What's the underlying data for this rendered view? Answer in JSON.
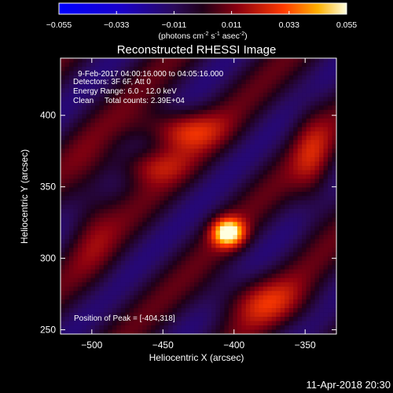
{
  "chart_data": {
    "type": "heatmap",
    "title": "Reconstructed RHESSI Image",
    "colorbar": {
      "ticks": [
        "-0.055",
        "-0.033",
        "-0.011",
        "0.011",
        "0.033",
        "0.055"
      ],
      "range": [
        -0.055,
        0.055
      ],
      "units_main": "(photons cm",
      "units_exp1": "-2",
      "units_mid": " s",
      "units_exp2": "-1",
      "units_mid2": " asec",
      "units_exp3": "-2",
      "units_close": ")"
    },
    "info": {
      "time": "9-Feb-2017 04:00:16.000 to 04:05:16.000",
      "detectors": "Detectors: 3F 6F, Att 0",
      "energy": "Energy Range: 6.0 - 12.0 keV",
      "clean": "Clean     Total counts: 2.39E+04"
    },
    "peak_label": "Position of Peak = [-404,318]",
    "peak": [
      -404,
      318
    ],
    "xlabel": "Heliocentric X (arcsec)",
    "ylabel": "Heliocentric Y (arcsec)",
    "xlim": [
      -522,
      -328
    ],
    "ylim": [
      247,
      440
    ],
    "xticks": [
      {
        "value": -500,
        "label": "−500"
      },
      {
        "value": -450,
        "label": "−450"
      },
      {
        "value": -400,
        "label": "−400"
      },
      {
        "value": -350,
        "label": "−350"
      }
    ],
    "yticks": [
      {
        "value": 250,
        "label": "250"
      },
      {
        "value": 300,
        "label": "300"
      },
      {
        "value": 350,
        "label": "350"
      },
      {
        "value": 400,
        "label": "400"
      }
    ],
    "sources": [
      {
        "x": -404,
        "y": 318,
        "sx": 8,
        "sy": 7,
        "amp": 0.06
      },
      {
        "x": -438,
        "y": 390,
        "sx": 20,
        "sy": 10,
        "amp": 0.03
      },
      {
        "x": -460,
        "y": 365,
        "sx": 18,
        "sy": 9,
        "amp": 0.02
      },
      {
        "x": -380,
        "y": 270,
        "sx": 22,
        "sy": 12,
        "amp": 0.022
      },
      {
        "x": -345,
        "y": 370,
        "sx": 10,
        "sy": 25,
        "amp": 0.018
      },
      {
        "x": -500,
        "y": 330,
        "sx": 12,
        "sy": 30,
        "amp": 0.012
      }
    ]
  },
  "footer": {
    "timestamp": "11-Apr-2018 20:30"
  }
}
